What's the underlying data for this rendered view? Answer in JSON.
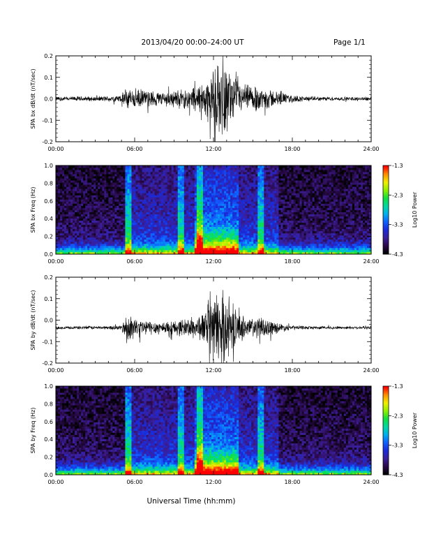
{
  "header": {
    "title": "2013/04/20  00:00–24:00 UT",
    "page": "Page 1/1"
  },
  "x_axis_label": "Universal Time (hh:mm)",
  "colorbar": {
    "label": "Log10 Power",
    "ticks": [
      "-1.3",
      "-2.3",
      "-3.3",
      "-4.3"
    ],
    "range": [
      -4.3,
      -1.3
    ],
    "colors": [
      "#000000",
      "#2a0a4a",
      "#3b1f9a",
      "#1a2ad8",
      "#1060ff",
      "#00b0f0",
      "#00d8a0",
      "#10e040",
      "#90f000",
      "#f0f000",
      "#ff9000",
      "#ff0000"
    ]
  },
  "chart_data": [
    {
      "type": "line",
      "ylabel": "SPA bx dB/dt (nT/sec)",
      "ylim": [
        -0.2,
        0.2
      ],
      "yticks": [
        "-0.2",
        "-0.1",
        "0.0",
        "0.1",
        "0.2"
      ],
      "xlim": [
        0,
        24
      ],
      "xticks": [
        "00:00",
        "06:00",
        "12:00",
        "18:00",
        "24:00"
      ],
      "baseline": 0.0,
      "envelope": {
        "hours": [
          0,
          1,
          2,
          3,
          4,
          5,
          5.3,
          6,
          7,
          8,
          9,
          10,
          11,
          11.5,
          12,
          12.5,
          13,
          13.5,
          14,
          15,
          16,
          17,
          18,
          19,
          20,
          21,
          22,
          23,
          24
        ],
        "amplitude": [
          0.012,
          0.012,
          0.013,
          0.013,
          0.015,
          0.02,
          0.06,
          0.055,
          0.045,
          0.04,
          0.045,
          0.055,
          0.08,
          0.11,
          0.15,
          0.2,
          0.18,
          0.12,
          0.08,
          0.07,
          0.06,
          0.035,
          0.02,
          0.013,
          0.011,
          0.011,
          0.01,
          0.01,
          0.01
        ]
      }
    },
    {
      "type": "heatmap",
      "ylabel": "SPA bx Freq (Hz)",
      "ylim": [
        0.0,
        1.0
      ],
      "yticks": [
        "0.0",
        "0.2",
        "0.4",
        "0.6",
        "0.8",
        "1.0"
      ],
      "xlim": [
        0,
        24
      ],
      "xticks": [
        "00:00",
        "06:00",
        "12:00",
        "18:00",
        "24:00"
      ],
      "zlim": [
        -4.3,
        -1.3
      ],
      "vertical_bands_hours": [
        5.5,
        9.5,
        11.0,
        15.6
      ],
      "enhanced_region_hours": [
        10.5,
        14.0
      ]
    },
    {
      "type": "line",
      "ylabel": "SPA by dB/dt (nT/sec)",
      "ylim": [
        -0.2,
        0.2
      ],
      "yticks": [
        "-0.2",
        "-0.1",
        "0.0",
        "0.1",
        "0.2"
      ],
      "xlim": [
        0,
        24
      ],
      "xticks": [
        "00:00",
        "06:00",
        "12:00",
        "18:00",
        "24:00"
      ],
      "baseline": -0.035,
      "envelope": {
        "hours": [
          0,
          1,
          2,
          3,
          4,
          5,
          5.3,
          6,
          7,
          8,
          9,
          10,
          11,
          11.5,
          12,
          12.5,
          13,
          13.5,
          14,
          15,
          16,
          17,
          18,
          19,
          20,
          21,
          22,
          23,
          24
        ],
        "amplitude": [
          0.008,
          0.008,
          0.009,
          0.009,
          0.01,
          0.013,
          0.07,
          0.05,
          0.04,
          0.035,
          0.04,
          0.05,
          0.07,
          0.1,
          0.17,
          0.2,
          0.18,
          0.11,
          0.07,
          0.06,
          0.05,
          0.025,
          0.012,
          0.009,
          0.008,
          0.008,
          0.008,
          0.008,
          0.008
        ]
      }
    },
    {
      "type": "heatmap",
      "ylabel": "SPA by Freq (Hz)",
      "ylim": [
        0.0,
        1.0
      ],
      "yticks": [
        "0.0",
        "0.2",
        "0.4",
        "0.6",
        "0.8",
        "1.0"
      ],
      "xlim": [
        0,
        24
      ],
      "xticks": [
        "00:00",
        "06:00",
        "12:00",
        "18:00",
        "24:00"
      ],
      "zlim": [
        -4.3,
        -1.3
      ],
      "vertical_bands_hours": [
        5.5,
        9.5,
        11.0,
        15.6
      ],
      "enhanced_region_hours": [
        10.5,
        14.0
      ]
    }
  ]
}
